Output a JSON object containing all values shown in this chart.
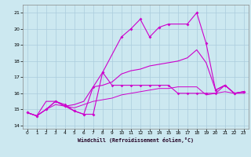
{
  "xlabel": "Windchill (Refroidissement éolien,°C)",
  "background_color": "#cce8f0",
  "grid_color": "#aaccdd",
  "line_color": "#cc00cc",
  "xlim": [
    -0.5,
    23.5
  ],
  "ylim": [
    13.8,
    21.5
  ],
  "yticks": [
    14,
    15,
    16,
    17,
    18,
    19,
    20,
    21
  ],
  "xticks": [
    0,
    1,
    2,
    3,
    4,
    5,
    6,
    7,
    8,
    9,
    10,
    11,
    12,
    13,
    14,
    15,
    16,
    17,
    18,
    19,
    20,
    21,
    22,
    23
  ],
  "line1_x": [
    0,
    1,
    2,
    3,
    4,
    5,
    6,
    7,
    8,
    10,
    11,
    12,
    13,
    14,
    15,
    17,
    18,
    19,
    20,
    21,
    22,
    23
  ],
  "line1_y": [
    14.8,
    14.6,
    15.0,
    15.5,
    15.2,
    14.9,
    14.7,
    14.7,
    17.3,
    19.5,
    20.0,
    20.6,
    19.5,
    20.1,
    20.3,
    20.3,
    21.0,
    19.1,
    16.2,
    16.5,
    16.0,
    16.1
  ],
  "line2_x": [
    0,
    1,
    2,
    3,
    4,
    5,
    6,
    7,
    8,
    9,
    10,
    11,
    12,
    13,
    14,
    15,
    16,
    17,
    18,
    19,
    20,
    21,
    22,
    23
  ],
  "line2_y": [
    14.8,
    14.6,
    15.5,
    15.5,
    15.2,
    15.3,
    15.5,
    16.4,
    16.5,
    16.7,
    17.2,
    17.4,
    17.5,
    17.7,
    17.8,
    17.9,
    18.0,
    18.2,
    18.7,
    17.9,
    16.2,
    16.5,
    16.0,
    16.1
  ],
  "line3_x": [
    0,
    1,
    2,
    3,
    4,
    5,
    6,
    7,
    8,
    9,
    10,
    11,
    12,
    13,
    14,
    15,
    16,
    17,
    18,
    19,
    20,
    21,
    22,
    23
  ],
  "line3_y": [
    14.8,
    14.6,
    15.0,
    15.5,
    15.3,
    14.9,
    14.7,
    16.4,
    17.3,
    16.5,
    16.5,
    16.5,
    16.5,
    16.5,
    16.5,
    16.5,
    16.0,
    16.0,
    16.0,
    16.0,
    16.0,
    16.5,
    16.0,
    16.1
  ],
  "line4_x": [
    0,
    1,
    2,
    3,
    4,
    5,
    6,
    7,
    8,
    9,
    10,
    11,
    12,
    13,
    14,
    15,
    16,
    17,
    18,
    19,
    20,
    21,
    22,
    23
  ],
  "line4_y": [
    14.8,
    14.6,
    15.0,
    15.3,
    15.2,
    15.1,
    15.3,
    15.5,
    15.6,
    15.7,
    15.9,
    16.0,
    16.1,
    16.2,
    16.3,
    16.3,
    16.4,
    16.4,
    16.4,
    15.9,
    16.0,
    16.1,
    16.0,
    16.0
  ]
}
